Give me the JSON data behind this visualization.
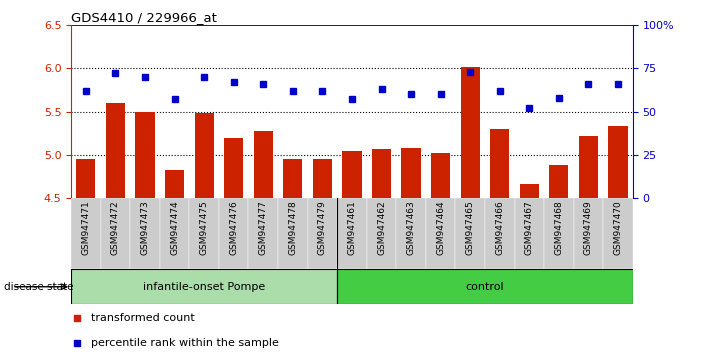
{
  "title": "GDS4410 / 229966_at",
  "samples": [
    "GSM947471",
    "GSM947472",
    "GSM947473",
    "GSM947474",
    "GSM947475",
    "GSM947476",
    "GSM947477",
    "GSM947478",
    "GSM947479",
    "GSM947461",
    "GSM947462",
    "GSM947463",
    "GSM947464",
    "GSM947465",
    "GSM947466",
    "GSM947467",
    "GSM947468",
    "GSM947469",
    "GSM947470"
  ],
  "red_values": [
    4.95,
    5.6,
    5.5,
    4.82,
    5.48,
    5.2,
    5.28,
    4.95,
    4.95,
    5.05,
    5.07,
    5.08,
    5.02,
    6.01,
    5.3,
    4.66,
    4.88,
    5.22,
    5.33
  ],
  "blue_values": [
    62,
    72,
    70,
    57,
    70,
    67,
    66,
    62,
    62,
    57,
    63,
    60,
    60,
    73,
    62,
    52,
    58,
    66,
    66
  ],
  "group1_label": "infantile-onset Pompe",
  "group2_label": "control",
  "group1_count": 9,
  "group2_count": 10,
  "ylim_left": [
    4.5,
    6.5
  ],
  "ylim_right": [
    0,
    100
  ],
  "yticks_left": [
    4.5,
    5.0,
    5.5,
    6.0,
    6.5
  ],
  "yticks_right": [
    0,
    25,
    50,
    75,
    100
  ],
  "bar_color": "#cc2200",
  "dot_color": "#0000cc",
  "group1_bg": "#aaddaa",
  "group2_bg": "#44cc44",
  "xticklabel_bg": "#cccccc",
  "legend_bar_label": "transformed count",
  "legend_dot_label": "percentile rank within the sample",
  "disease_state_label": "disease state",
  "hgrid_values": [
    5.0,
    5.5,
    6.0
  ]
}
